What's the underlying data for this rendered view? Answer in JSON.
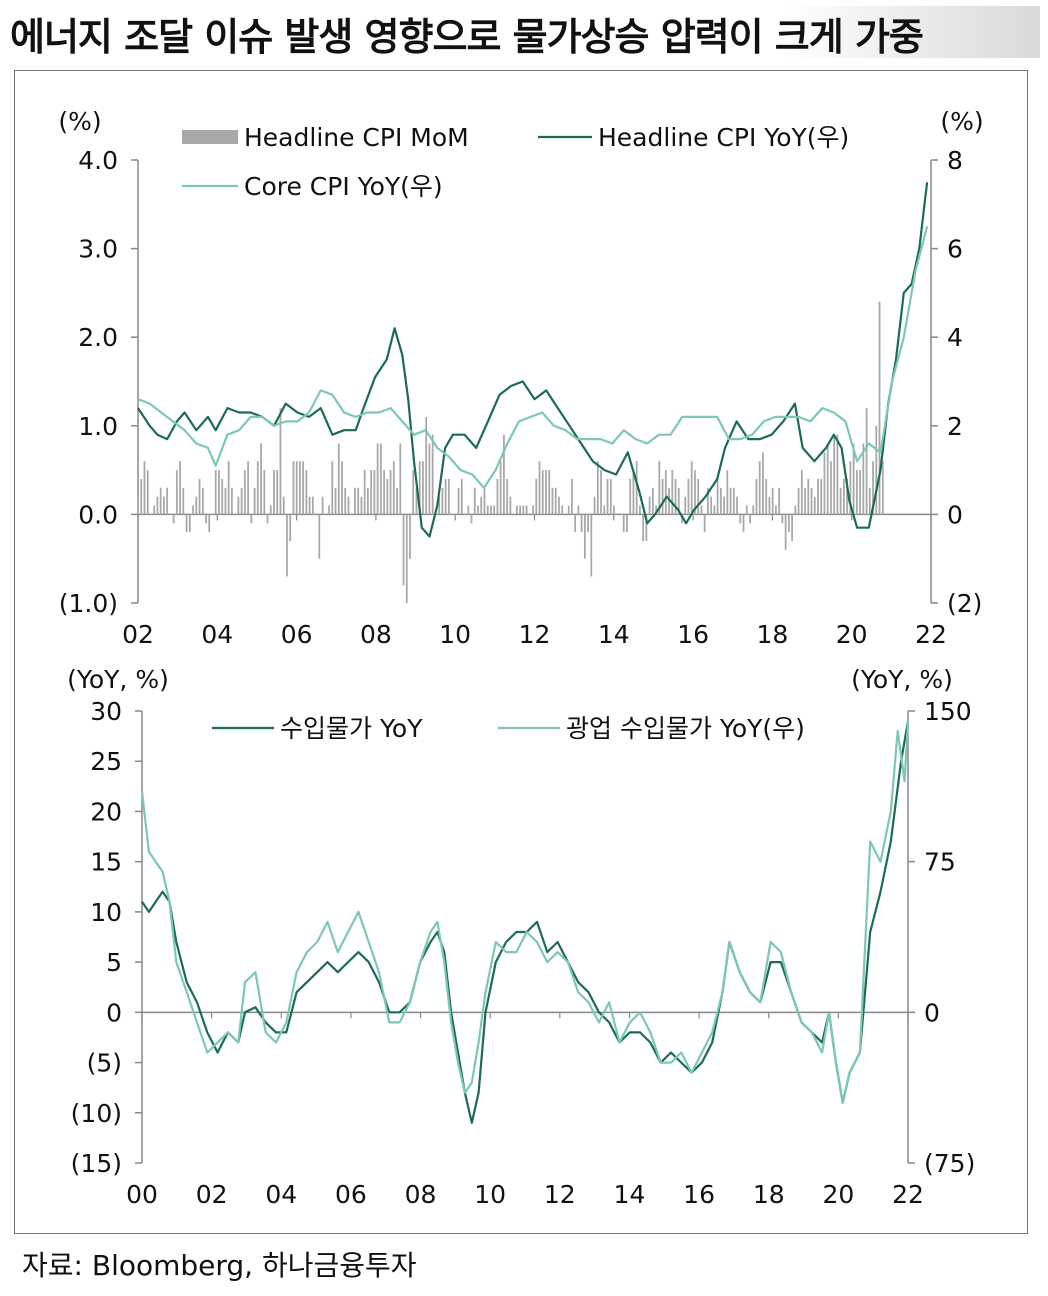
{
  "page": {
    "headline": "에너지 조달 이슈 발생 영향으로 물가상승 압력이 크게 가중",
    "source": "자료: Bloomberg, 하나금융투자"
  },
  "colors": {
    "dark_green": "#1c6a58",
    "light_green": "#7cc8b5",
    "bar_gray": "#a8a8a8",
    "axis": "#888888"
  },
  "chart_data": [
    {
      "type": "bar+line",
      "title": "",
      "y_left_unit": "(%)",
      "y_right_unit": "(%)",
      "y_left_ticks": [
        "4.0",
        "3.0",
        "2.0",
        "1.0",
        "0.0",
        "(1.0)"
      ],
      "y_right_ticks": [
        "8",
        "6",
        "4",
        "2",
        "0",
        "(2)"
      ],
      "ylim_left": [
        -1,
        4
      ],
      "ylim_right": [
        -2,
        8
      ],
      "x_ticks": [
        "02",
        "04",
        "06",
        "08",
        "10",
        "12",
        "14",
        "16",
        "18",
        "20",
        "22"
      ],
      "x_range": [
        2002,
        2022.4
      ],
      "legend": [
        "Headline CPI MoM",
        "Headline CPI YoY(우)",
        "Core CPI YoY(우)"
      ],
      "series": [
        {
          "name": "Headline CPI MoM",
          "axis": "left",
          "kind": "bar",
          "note": "monthly % change, values approximated from chart",
          "x_start": 2002.0,
          "step": 0.0833,
          "values": [
            0.2,
            0.4,
            0.6,
            0.5,
            0.0,
            0.1,
            0.2,
            0.3,
            0.2,
            0.3,
            0.0,
            -0.1,
            0.5,
            0.6,
            0.3,
            -0.2,
            -0.2,
            0.1,
            0.2,
            0.4,
            0.3,
            -0.1,
            -0.2,
            0.0,
            0.5,
            0.5,
            0.4,
            0.3,
            0.6,
            0.3,
            0.0,
            0.2,
            0.3,
            0.5,
            0.6,
            -0.1,
            0.3,
            0.6,
            0.8,
            0.5,
            -0.1,
            0.1,
            0.5,
            0.5,
            1.2,
            0.2,
            -0.7,
            -0.3,
            0.6,
            0.6,
            0.6,
            0.6,
            0.5,
            0.2,
            0.2,
            0.0,
            -0.5,
            0.2,
            0.0,
            0.1,
            0.6,
            0.3,
            0.8,
            0.6,
            0.3,
            0.2,
            0.0,
            0.3,
            0.3,
            0.2,
            0.5,
            0.3,
            0.5,
            0.5,
            0.8,
            0.8,
            0.5,
            0.4,
            0.5,
            0.6,
            0.3,
            0.8,
            -0.8,
            -1.0,
            -0.5,
            0.5,
            0.3,
            0.6,
            0.6,
            1.1,
            0.8,
            0.9,
            0.0,
            0.2,
            0.3,
            0.4,
            0.4,
            0.0,
            0.0,
            0.3,
            0.4,
            0.0,
            0.1,
            -0.1,
            0.3,
            0.1,
            0.2,
            0.3,
            0.1,
            0.1,
            0.1,
            0.4,
            0.6,
            0.9,
            0.4,
            0.2,
            0.0,
            0.1,
            0.1,
            0.1,
            0.1,
            0.0,
            0.1,
            0.4,
            0.6,
            0.5,
            0.5,
            0.5,
            0.3,
            0.3,
            0.2,
            0.1,
            0.0,
            0.1,
            0.4,
            -0.2,
            0.1,
            -0.2,
            -0.5,
            -0.2,
            -0.7,
            0.2,
            0.6,
            0.5,
            0.1,
            0.4,
            0.4,
            0.1,
            0.0,
            0.0,
            -0.2,
            -0.2,
            0.4,
            0.5,
            0.6,
            0.1,
            -0.3,
            -0.3,
            0.2,
            0.3,
            0.1,
            0.6,
            0.4,
            0.5,
            0.3,
            0.5,
            0.4,
            0.3,
            -0.1,
            0.2,
            0.4,
            0.6,
            0.5,
            0.4,
            0.1,
            -0.2,
            0.3,
            0.2,
            0.1,
            0.4,
            0.3,
            0.2,
            0.5,
            0.3,
            0.3,
            0.2,
            -0.1,
            -0.2,
            0.1,
            -0.1,
            0.1,
            0.4,
            0.6,
            0.7,
            0.4,
            0.2,
            0.3,
            0.1,
            0.3,
            -0.1,
            -0.4,
            -0.2,
            -0.3,
            0.1,
            0.3,
            0.5,
            0.3,
            0.4,
            0.3,
            0.2,
            0.4,
            0.4,
            0.7,
            0.8,
            0.6,
            0.9,
            0.9,
            0.3,
            0.4,
            0.4,
            0.6,
            0.8,
            0.5,
            0.5,
            0.8,
            1.2,
            0.3,
            0.6,
            1.0,
            2.4,
            0.6
          ]
        },
        {
          "name": "Headline CPI YoY(우)",
          "axis": "right",
          "kind": "line",
          "x": [
            2002.0,
            2002.3,
            2002.5,
            2002.75,
            2003.0,
            2003.2,
            2003.5,
            2003.8,
            2004.0,
            2004.3,
            2004.6,
            2004.9,
            2005.2,
            2005.5,
            2005.8,
            2006.1,
            2006.4,
            2006.7,
            2007.0,
            2007.3,
            2007.6,
            2007.8,
            2008.1,
            2008.4,
            2008.6,
            2008.8,
            2008.95,
            2009.1,
            2009.3,
            2009.5,
            2009.7,
            2009.9,
            2010.1,
            2010.4,
            2010.7,
            2011.0,
            2011.3,
            2011.6,
            2011.9,
            2012.2,
            2012.5,
            2012.8,
            2013.1,
            2013.4,
            2013.7,
            2014.0,
            2014.3,
            2014.6,
            2014.9,
            2015.1,
            2015.3,
            2015.6,
            2015.9,
            2016.1,
            2016.3,
            2016.6,
            2016.9,
            2017.1,
            2017.4,
            2017.7,
            2018.0,
            2018.3,
            2018.6,
            2018.9,
            2019.1,
            2019.4,
            2019.7,
            2019.9,
            2020.1,
            2020.3,
            2020.5,
            2020.8,
            2021.1,
            2021.3,
            2021.5,
            2021.7,
            2021.9,
            2022.1,
            2022.3
          ],
          "values": [
            2.4,
            2.0,
            1.8,
            1.7,
            2.1,
            2.3,
            1.9,
            2.2,
            1.9,
            2.4,
            2.3,
            2.3,
            2.2,
            2.0,
            2.5,
            2.3,
            2.2,
            2.4,
            1.8,
            1.9,
            1.9,
            2.4,
            3.1,
            3.5,
            4.2,
            3.6,
            2.6,
            1.2,
            -0.3,
            -0.5,
            0.2,
            1.5,
            1.8,
            1.8,
            1.5,
            2.1,
            2.7,
            2.9,
            3.0,
            2.6,
            2.8,
            2.4,
            2.0,
            1.6,
            1.2,
            1.0,
            0.9,
            1.4,
            0.5,
            -0.2,
            0.0,
            0.4,
            0.1,
            -0.2,
            0.1,
            0.4,
            0.8,
            1.5,
            2.1,
            1.7,
            1.7,
            1.8,
            2.1,
            2.5,
            1.5,
            1.2,
            1.5,
            1.8,
            1.5,
            0.3,
            -0.3,
            -0.3,
            1.0,
            2.5,
            3.5,
            5.0,
            5.2,
            6.0,
            7.5
          ]
        },
        {
          "name": "Core CPI YoY(우)",
          "axis": "right",
          "kind": "line",
          "x": [
            2002.0,
            2002.3,
            2002.6,
            2002.9,
            2003.2,
            2003.5,
            2003.8,
            2004.0,
            2004.3,
            2004.6,
            2004.9,
            2005.2,
            2005.5,
            2005.8,
            2006.1,
            2006.4,
            2006.7,
            2007.0,
            2007.3,
            2007.6,
            2007.9,
            2008.2,
            2008.5,
            2008.8,
            2009.1,
            2009.4,
            2009.7,
            2010.0,
            2010.3,
            2010.6,
            2010.9,
            2011.2,
            2011.5,
            2011.8,
            2012.1,
            2012.4,
            2012.7,
            2013.0,
            2013.3,
            2013.6,
            2013.9,
            2014.2,
            2014.5,
            2014.8,
            2015.1,
            2015.4,
            2015.7,
            2016.0,
            2016.3,
            2016.6,
            2016.9,
            2017.2,
            2017.5,
            2017.8,
            2018.1,
            2018.4,
            2018.7,
            2019.0,
            2019.3,
            2019.6,
            2019.9,
            2020.2,
            2020.5,
            2020.8,
            2021.1,
            2021.4,
            2021.7,
            2022.0,
            2022.3
          ],
          "values": [
            2.6,
            2.5,
            2.3,
            2.1,
            1.9,
            1.6,
            1.5,
            1.1,
            1.8,
            1.9,
            2.2,
            2.2,
            2.0,
            2.1,
            2.1,
            2.3,
            2.8,
            2.7,
            2.3,
            2.2,
            2.3,
            2.3,
            2.4,
            2.1,
            1.8,
            1.9,
            1.5,
            1.3,
            1.0,
            0.9,
            0.6,
            1.0,
            1.6,
            2.1,
            2.2,
            2.3,
            2.0,
            1.9,
            1.7,
            1.7,
            1.7,
            1.6,
            1.9,
            1.7,
            1.6,
            1.8,
            1.8,
            2.2,
            2.2,
            2.2,
            2.2,
            1.7,
            1.7,
            1.8,
            2.1,
            2.2,
            2.2,
            2.2,
            2.1,
            2.4,
            2.3,
            2.1,
            1.2,
            1.6,
            1.4,
            3.0,
            4.0,
            5.5,
            6.5
          ]
        }
      ]
    },
    {
      "type": "line",
      "title": "",
      "y_left_unit": "(YoY, %)",
      "y_right_unit": "(YoY, %)",
      "y_left_ticks": [
        "30",
        "25",
        "20",
        "15",
        "10",
        "5",
        "0",
        "(5)",
        "(10)",
        "(15)"
      ],
      "y_right_ticks": [
        "150",
        "75",
        "0",
        "(75)"
      ],
      "ylim_left": [
        -15,
        30
      ],
      "ylim_right": [
        -75,
        150
      ],
      "x_ticks": [
        "00",
        "02",
        "04",
        "06",
        "08",
        "10",
        "12",
        "14",
        "16",
        "18",
        "20",
        "22"
      ],
      "x_range": [
        2000,
        2022.3
      ],
      "legend": [
        "수입물가 YoY",
        "광업 수입물가 YoY(우)"
      ],
      "series": [
        {
          "name": "수입물가 YoY",
          "axis": "left",
          "x": [
            2000.0,
            2000.2,
            2000.4,
            2000.6,
            2000.8,
            2001.0,
            2001.3,
            2001.6,
            2001.9,
            2002.2,
            2002.5,
            2002.8,
            2003.0,
            2003.3,
            2003.6,
            2003.9,
            2004.2,
            2004.5,
            2004.8,
            2005.1,
            2005.4,
            2005.7,
            2006.0,
            2006.3,
            2006.6,
            2006.9,
            2007.2,
            2007.5,
            2007.8,
            2008.1,
            2008.4,
            2008.6,
            2008.8,
            2009.0,
            2009.2,
            2009.4,
            2009.6,
            2009.8,
            2010.0,
            2010.3,
            2010.6,
            2010.9,
            2011.2,
            2011.5,
            2011.8,
            2012.1,
            2012.4,
            2012.7,
            2013.0,
            2013.3,
            2013.6,
            2013.9,
            2014.2,
            2014.5,
            2014.8,
            2015.1,
            2015.4,
            2015.7,
            2016.0,
            2016.3,
            2016.6,
            2016.9,
            2017.1,
            2017.4,
            2017.7,
            2018.0,
            2018.3,
            2018.6,
            2018.9,
            2019.2,
            2019.5,
            2019.8,
            2020.0,
            2020.2,
            2020.4,
            2020.6,
            2020.9,
            2021.2,
            2021.5,
            2021.8,
            2022.1,
            2022.3
          ],
          "values": [
            11.0,
            10.0,
            11.0,
            12.0,
            11.0,
            7.0,
            3.0,
            1.0,
            -2.0,
            -4.0,
            -2.0,
            -3.0,
            0.0,
            0.5,
            -1.0,
            -2.0,
            -2.0,
            2.0,
            3.0,
            4.0,
            5.0,
            4.0,
            5.0,
            6.0,
            5.0,
            3.0,
            0.0,
            0.0,
            1.0,
            5.0,
            7.0,
            8.0,
            6.0,
            0.0,
            -4.0,
            -8.0,
            -11.0,
            -8.0,
            0.0,
            5.0,
            7.0,
            8.0,
            8.0,
            9.0,
            6.0,
            7.0,
            5.0,
            3.0,
            2.0,
            0.0,
            -1.0,
            -3.0,
            -2.0,
            -2.0,
            -3.0,
            -5.0,
            -4.0,
            -5.0,
            -6.0,
            -5.0,
            -3.0,
            2.0,
            7.0,
            4.0,
            2.0,
            1.0,
            5.0,
            5.0,
            2.0,
            -1.0,
            -2.0,
            -3.0,
            0.0,
            -5.0,
            -9.0,
            -6.0,
            -4.0,
            8.0,
            12.0,
            17.0,
            25.0,
            29.0
          ]
        },
        {
          "name": "광업 수입물가 YoY(우)",
          "axis": "right",
          "x": [
            2000.0,
            2000.2,
            2000.4,
            2000.6,
            2000.8,
            2001.0,
            2001.3,
            2001.6,
            2001.9,
            2002.2,
            2002.5,
            2002.8,
            2003.0,
            2003.3,
            2003.6,
            2003.9,
            2004.2,
            2004.5,
            2004.8,
            2005.1,
            2005.4,
            2005.7,
            2006.0,
            2006.3,
            2006.6,
            2006.9,
            2007.2,
            2007.5,
            2007.8,
            2008.1,
            2008.4,
            2008.6,
            2008.8,
            2009.0,
            2009.2,
            2009.4,
            2009.6,
            2009.8,
            2010.0,
            2010.3,
            2010.6,
            2010.9,
            2011.2,
            2011.5,
            2011.8,
            2012.1,
            2012.4,
            2012.7,
            2013.0,
            2013.3,
            2013.6,
            2013.9,
            2014.2,
            2014.5,
            2014.8,
            2015.1,
            2015.4,
            2015.7,
            2016.0,
            2016.3,
            2016.6,
            2016.9,
            2017.1,
            2017.4,
            2017.7,
            2018.0,
            2018.3,
            2018.6,
            2018.9,
            2019.2,
            2019.5,
            2019.8,
            2020.0,
            2020.2,
            2020.4,
            2020.6,
            2020.9,
            2021.2,
            2021.5,
            2021.8,
            2022.0,
            2022.2,
            2022.3
          ],
          "values": [
            110.0,
            80.0,
            75.0,
            70.0,
            55.0,
            25.0,
            10.0,
            -5.0,
            -20.0,
            -15.0,
            -10.0,
            -15.0,
            15.0,
            20.0,
            -10.0,
            -15.0,
            -5.0,
            20.0,
            30.0,
            35.0,
            45.0,
            30.0,
            40.0,
            50.0,
            35.0,
            20.0,
            -5.0,
            -5.0,
            5.0,
            25.0,
            40.0,
            45.0,
            25.0,
            -5.0,
            -25.0,
            -40.0,
            -35.0,
            -15.0,
            10.0,
            35.0,
            30.0,
            30.0,
            40.0,
            35.0,
            25.0,
            30.0,
            25.0,
            10.0,
            5.0,
            -5.0,
            5.0,
            -15.0,
            -5.0,
            0.0,
            -10.0,
            -25.0,
            -25.0,
            -20.0,
            -30.0,
            -20.0,
            -10.0,
            10.0,
            35.0,
            20.0,
            10.0,
            5.0,
            35.0,
            30.0,
            10.0,
            -5.0,
            -10.0,
            -20.0,
            0.0,
            -25.0,
            -45.0,
            -30.0,
            -20.0,
            85.0,
            75.0,
            100.0,
            140.0,
            115.0,
            145.0
          ]
        }
      ]
    }
  ]
}
